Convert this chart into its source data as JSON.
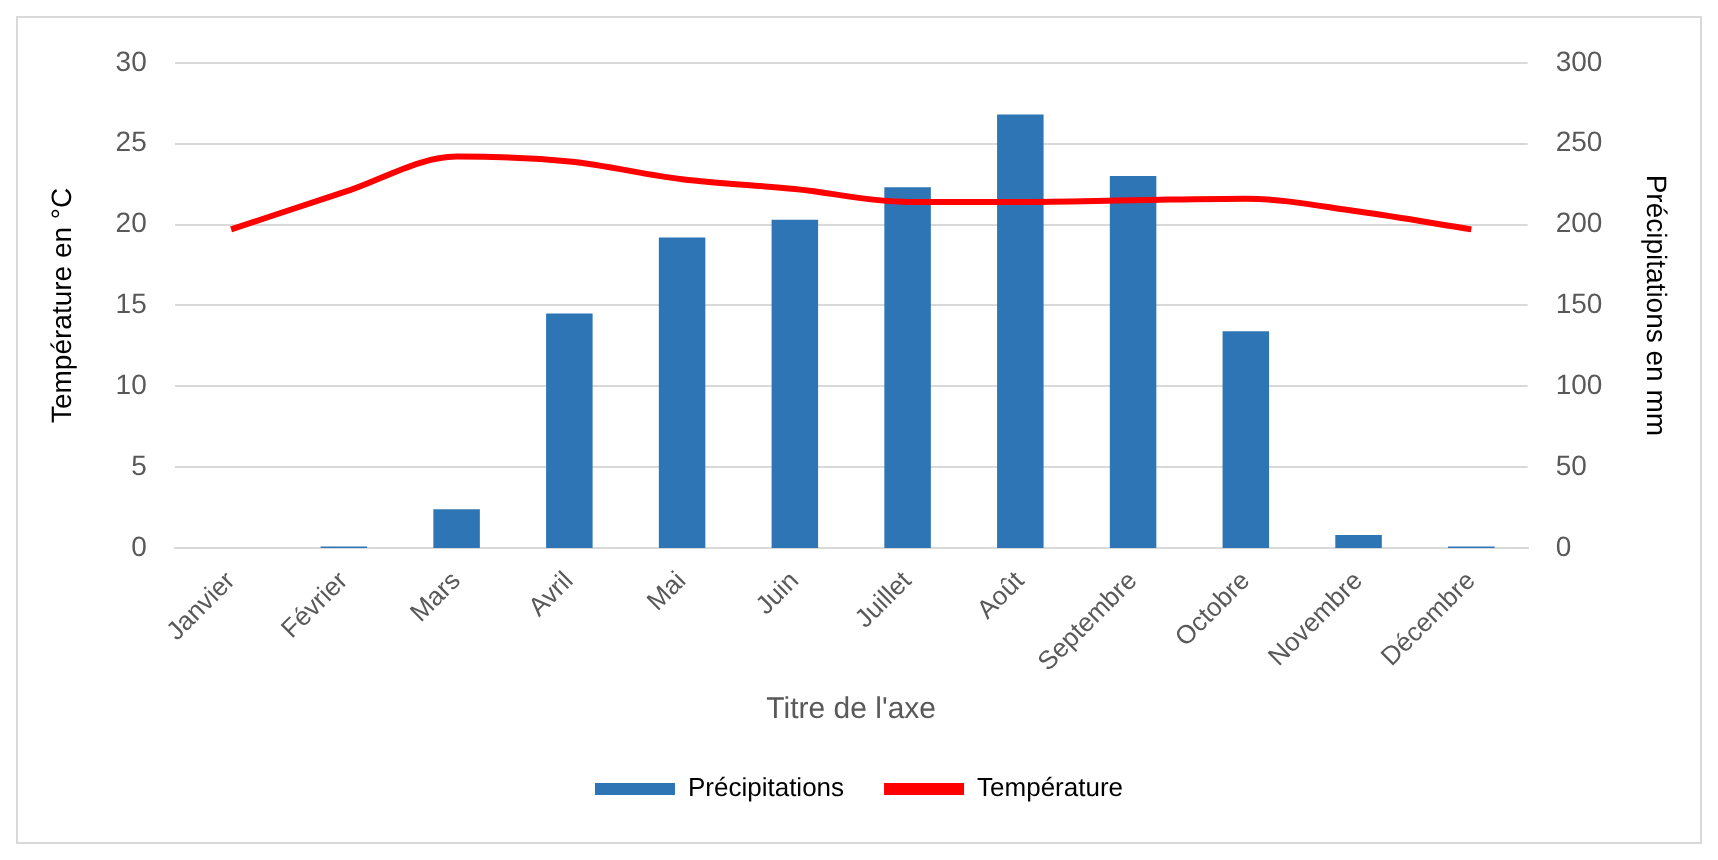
{
  "chart_data": {
    "type": "bar",
    "categories": [
      "Janvier",
      "Février",
      "Mars",
      "Avril",
      "Mai",
      "Juin",
      "Juillet",
      "Août",
      "Septembre",
      "Octobre",
      "Novembre",
      "Décembre"
    ],
    "xlabel": "Titre de l'axe",
    "ylabel": "Température en °C",
    "y2label": "Précipitations en mm",
    "series": [
      {
        "name": "Précipitations",
        "axis": "y2",
        "color": "#2e75b6",
        "values": [
          0,
          1,
          24,
          145,
          192,
          203,
          223,
          268,
          230,
          134,
          8,
          1
        ]
      },
      {
        "name": "Température",
        "type": "line",
        "axis": "y",
        "color": "#ff0000",
        "values": [
          19.7,
          22.0,
          24.2,
          23.9,
          22.8,
          22.2,
          21.4,
          21.4,
          21.5,
          21.6,
          20.8,
          19.7
        ]
      }
    ],
    "ylim": [
      0,
      30
    ],
    "yticks": [
      0,
      5,
      10,
      15,
      20,
      25,
      30
    ],
    "y2lim": [
      0,
      300
    ],
    "y2ticks": [
      0,
      50,
      100,
      150,
      200,
      250,
      300
    ],
    "grid": "y",
    "legend": "bottom",
    "marker": "none",
    "line_style": "solid"
  }
}
